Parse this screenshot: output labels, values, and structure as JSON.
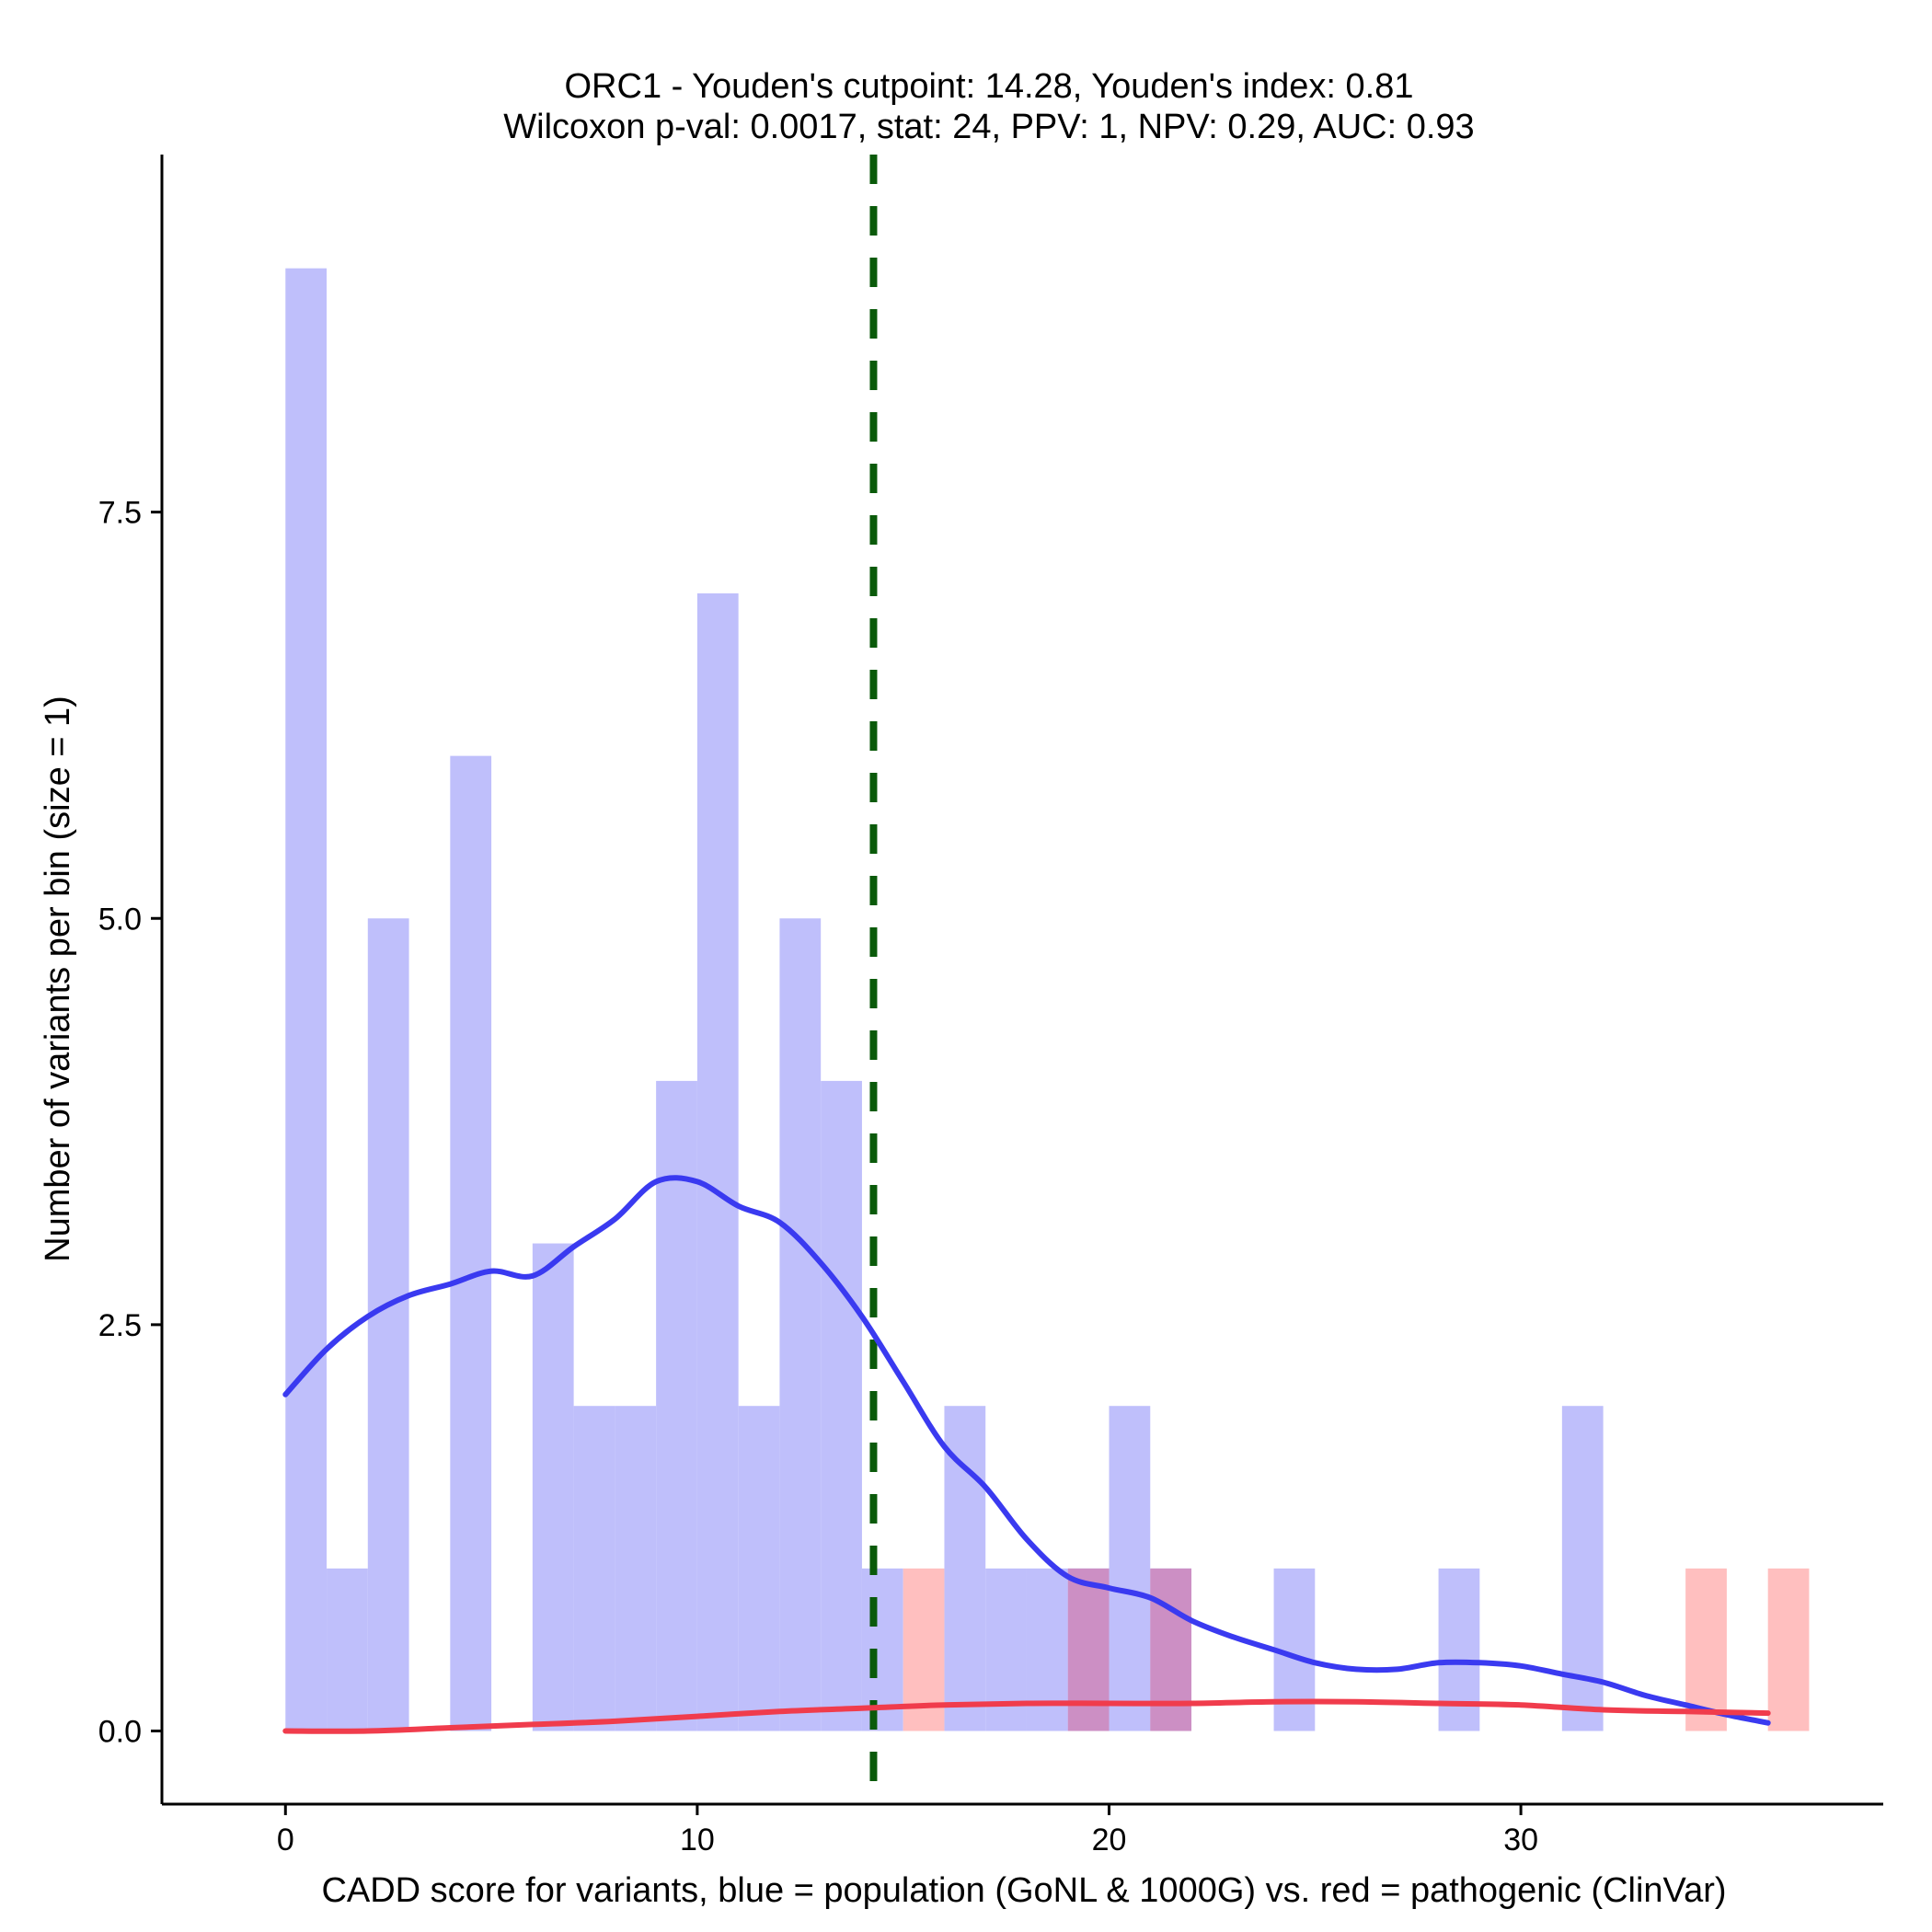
{
  "chart_data": {
    "type": "bar",
    "title": "ORC1 - Youden's cutpoint: 14.28, Youden's index: 0.81",
    "subtitle": "Wilcoxon p-val: 0.0017, stat: 24, PPV: 1, NPV: 0.29, AUC: 0.93",
    "xlabel": "CADD score for variants, blue = population (GoNL & 1000G) vs. red = pathogenic (ClinVar)",
    "ylabel": "Number of variants per bin (size = 1)",
    "xlim": [
      -3,
      38.8
    ],
    "ylim": [
      -0.45,
      9.7
    ],
    "xticks": [
      0,
      10,
      20,
      30
    ],
    "xtick_labels": [
      "0",
      "10",
      "20",
      "30"
    ],
    "yticks": [
      0,
      2.5,
      5,
      7.5
    ],
    "ytick_labels": [
      "0.0",
      "2.5",
      "5.0",
      "7.5"
    ],
    "bin_width": 1,
    "cutpoint": 14.28,
    "colors": {
      "population_bar": "#bfbffb",
      "pathogenic_bar": "#ffbfbf",
      "overlap_bar": "#cc8fc4",
      "population_density": "#3a3af0",
      "pathogenic_density": "#f03c4c",
      "cutpoint_line": "#0a5a0a"
    },
    "series": [
      {
        "name": "population (GoNL & 1000G)",
        "bins": [
          [
            0,
            9
          ],
          [
            1,
            1
          ],
          [
            2,
            5
          ],
          [
            4,
            6
          ],
          [
            6,
            3
          ],
          [
            7,
            2
          ],
          [
            8,
            2
          ],
          [
            9,
            4
          ],
          [
            10,
            7
          ],
          [
            11,
            2
          ],
          [
            12,
            5
          ],
          [
            13,
            4
          ],
          [
            14,
            1
          ],
          [
            16,
            2
          ],
          [
            17,
            1
          ],
          [
            18,
            1
          ],
          [
            19,
            1
          ],
          [
            20,
            2
          ],
          [
            21,
            1
          ],
          [
            24,
            1
          ],
          [
            28,
            1
          ],
          [
            31,
            2
          ]
        ],
        "density_curve": [
          [
            0,
            2.07
          ],
          [
            1,
            2.35
          ],
          [
            2,
            2.55
          ],
          [
            3,
            2.68
          ],
          [
            4,
            2.75
          ],
          [
            5,
            2.83
          ],
          [
            6,
            2.8
          ],
          [
            7,
            2.98
          ],
          [
            8,
            3.15
          ],
          [
            9,
            3.38
          ],
          [
            10,
            3.38
          ],
          [
            11,
            3.23
          ],
          [
            12,
            3.13
          ],
          [
            13,
            2.88
          ],
          [
            14,
            2.55
          ],
          [
            15,
            2.15
          ],
          [
            16,
            1.75
          ],
          [
            17,
            1.5
          ],
          [
            18,
            1.18
          ],
          [
            19,
            0.95
          ],
          [
            20,
            0.88
          ],
          [
            21,
            0.82
          ],
          [
            22,
            0.68
          ],
          [
            23,
            0.58
          ],
          [
            24,
            0.5
          ],
          [
            25,
            0.42
          ],
          [
            26,
            0.38
          ],
          [
            27,
            0.38
          ],
          [
            28,
            0.42
          ],
          [
            29,
            0.42
          ],
          [
            30,
            0.4
          ],
          [
            31,
            0.35
          ],
          [
            32,
            0.3
          ],
          [
            33,
            0.22
          ],
          [
            34,
            0.16
          ],
          [
            35,
            0.1
          ],
          [
            36,
            0.05
          ]
        ]
      },
      {
        "name": "pathogenic (ClinVar)",
        "bins": [
          [
            15,
            1
          ],
          [
            19,
            1
          ],
          [
            21,
            1
          ],
          [
            34,
            1
          ],
          [
            36,
            1
          ]
        ],
        "density_curve": [
          [
            0,
            0.0
          ],
          [
            2,
            0.0
          ],
          [
            4,
            0.02
          ],
          [
            6,
            0.04
          ],
          [
            8,
            0.06
          ],
          [
            10,
            0.09
          ],
          [
            12,
            0.12
          ],
          [
            14,
            0.14
          ],
          [
            16,
            0.16
          ],
          [
            18,
            0.17
          ],
          [
            20,
            0.17
          ],
          [
            22,
            0.17
          ],
          [
            24,
            0.18
          ],
          [
            26,
            0.18
          ],
          [
            28,
            0.17
          ],
          [
            30,
            0.16
          ],
          [
            32,
            0.13
          ],
          [
            34,
            0.12
          ],
          [
            36,
            0.11
          ]
        ]
      }
    ]
  }
}
